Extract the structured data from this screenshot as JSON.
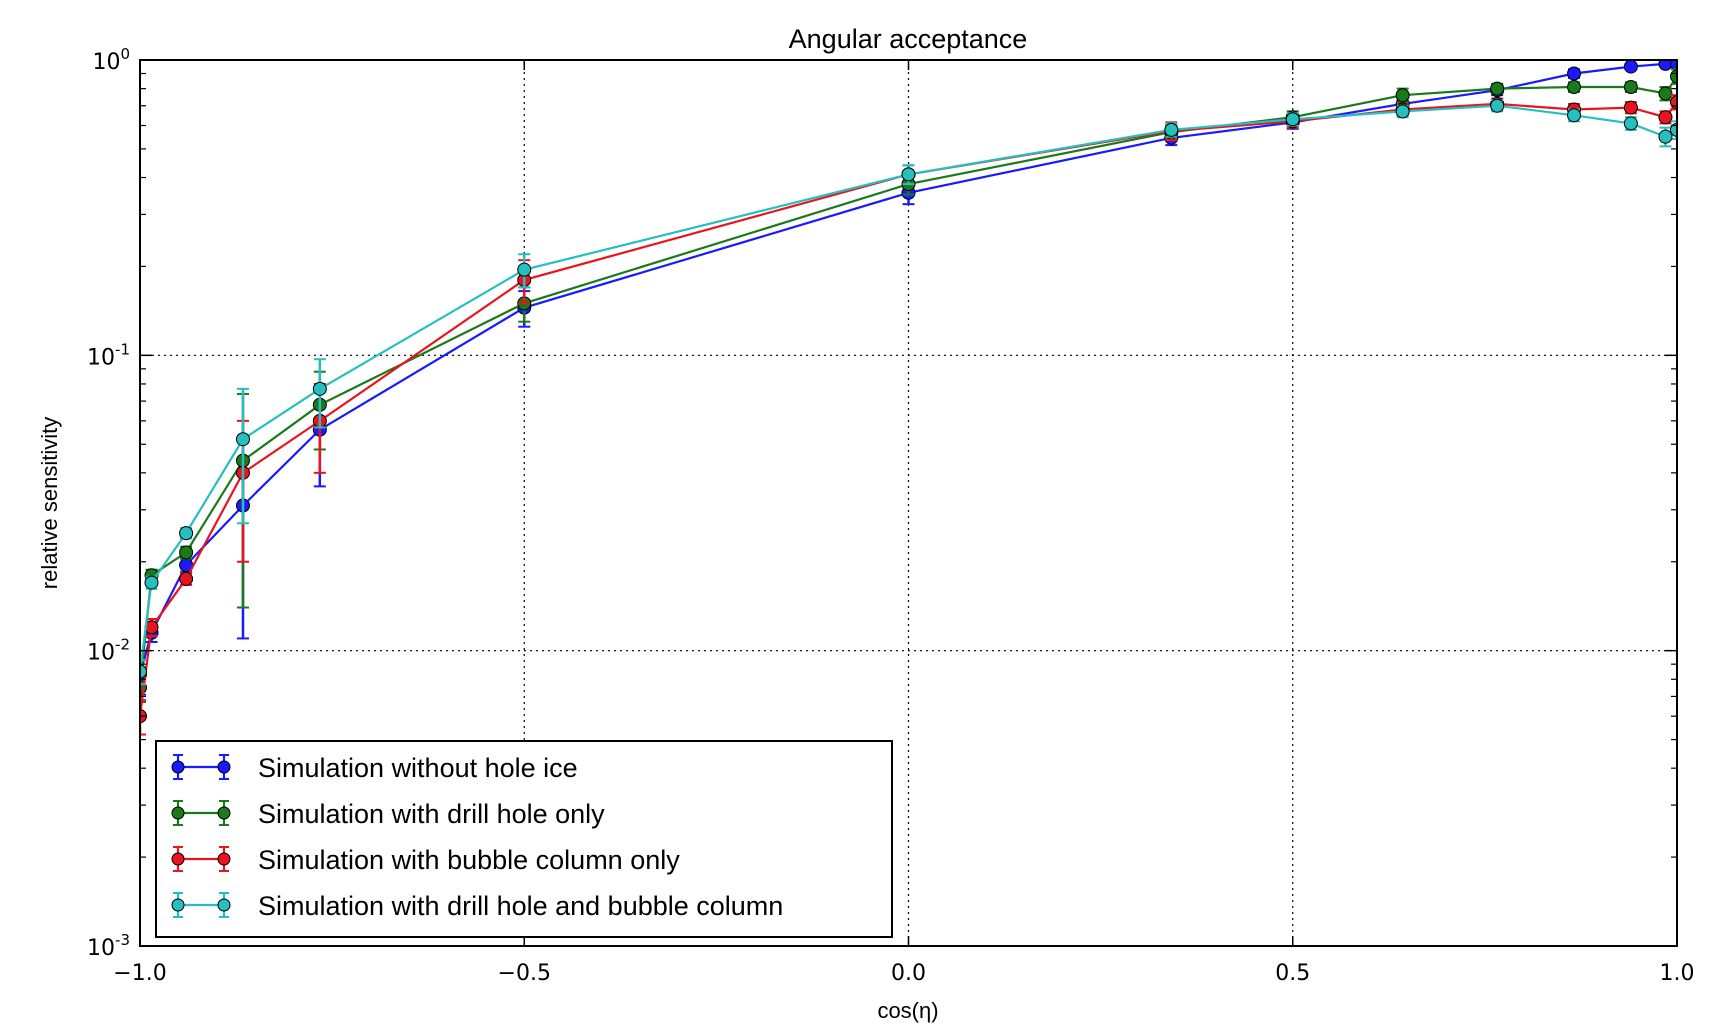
{
  "chart_data": {
    "type": "line",
    "title": "Angular acceptance",
    "xlabel": "cos(η)",
    "ylabel": "relative sensitivity",
    "xlim": [
      -1.0,
      1.0
    ],
    "ylim": [
      0.001,
      1.0
    ],
    "yscale": "log",
    "grid": true,
    "legend_position": "bottom-left",
    "x_ticks": [
      -1.0,
      -0.5,
      0.0,
      0.5,
      1.0
    ],
    "x_tick_labels": [
      "−1.0",
      "−0.5",
      "0.0",
      "0.5",
      "1.0"
    ],
    "y_ticks": [
      0.001,
      0.01,
      0.1,
      1.0
    ],
    "y_tick_labels": [
      {
        "base": "10",
        "exp": "-3"
      },
      {
        "base": "10",
        "exp": "-2"
      },
      {
        "base": "10",
        "exp": "-1"
      },
      {
        "base": "10",
        "exp": "0"
      }
    ],
    "series": [
      {
        "name": "Simulation without hole ice",
        "color": "#1a1aff",
        "x": [
          -1.0,
          -0.985,
          -0.94,
          -0.866,
          -0.766,
          -0.5,
          0.0,
          0.342,
          0.5,
          0.643,
          0.766,
          0.866,
          0.94,
          0.985,
          1.0
        ],
        "y": [
          0.0083,
          0.0115,
          0.0195,
          0.031,
          0.056,
          0.145,
          0.355,
          0.545,
          0.615,
          0.71,
          0.79,
          0.9,
          0.95,
          0.97,
          0.97
        ],
        "err": [
          0.0012,
          0.0008,
          0.001,
          0.02,
          0.02,
          0.02,
          0.03,
          0.03,
          0.03,
          0.03,
          0.03,
          0.03,
          0.02,
          0.01,
          0.01
        ]
      },
      {
        "name": "Simulation with drill hole only",
        "color": "#1a7a1a",
        "x": [
          -1.0,
          -0.985,
          -0.94,
          -0.866,
          -0.766,
          -0.5,
          0.0,
          0.342,
          0.5,
          0.643,
          0.766,
          0.866,
          0.94,
          0.985,
          1.0
        ],
        "y": [
          0.0075,
          0.018,
          0.0215,
          0.044,
          0.068,
          0.15,
          0.38,
          0.57,
          0.64,
          0.76,
          0.8,
          0.81,
          0.81,
          0.77,
          0.88
        ],
        "err": [
          0.0008,
          0.0008,
          0.001,
          0.03,
          0.02,
          0.02,
          0.03,
          0.03,
          0.03,
          0.04,
          0.03,
          0.03,
          0.03,
          0.04,
          0.05
        ]
      },
      {
        "name": "Simulation with bubble column only",
        "color": "#e8141e",
        "x": [
          -1.0,
          -0.985,
          -0.94,
          -0.866,
          -0.766,
          -0.5,
          0.0,
          0.342,
          0.5,
          0.643,
          0.766,
          0.866,
          0.94,
          0.985,
          1.0
        ],
        "y": [
          0.006,
          0.012,
          0.0175,
          0.04,
          0.06,
          0.18,
          0.41,
          0.575,
          0.62,
          0.68,
          0.71,
          0.68,
          0.69,
          0.64,
          0.72
        ],
        "err": [
          0.0008,
          0.0008,
          0.0008,
          0.02,
          0.02,
          0.03,
          0.03,
          0.04,
          0.03,
          0.03,
          0.03,
          0.03,
          0.03,
          0.03,
          0.04
        ]
      },
      {
        "name": "Simulation with drill hole and bubble column",
        "color": "#26bfbf",
        "x": [
          -1.0,
          -0.985,
          -0.94,
          -0.866,
          -0.766,
          -0.5,
          0.0,
          0.342,
          0.5,
          0.643,
          0.766,
          0.866,
          0.94,
          0.985,
          1.0
        ],
        "y": [
          0.0085,
          0.017,
          0.025,
          0.052,
          0.077,
          0.195,
          0.41,
          0.58,
          0.63,
          0.67,
          0.7,
          0.65,
          0.61,
          0.55,
          0.58
        ],
        "err": [
          0.0008,
          0.0008,
          0.001,
          0.025,
          0.02,
          0.025,
          0.03,
          0.03,
          0.03,
          0.03,
          0.03,
          0.03,
          0.03,
          0.04,
          0.04
        ]
      }
    ]
  }
}
